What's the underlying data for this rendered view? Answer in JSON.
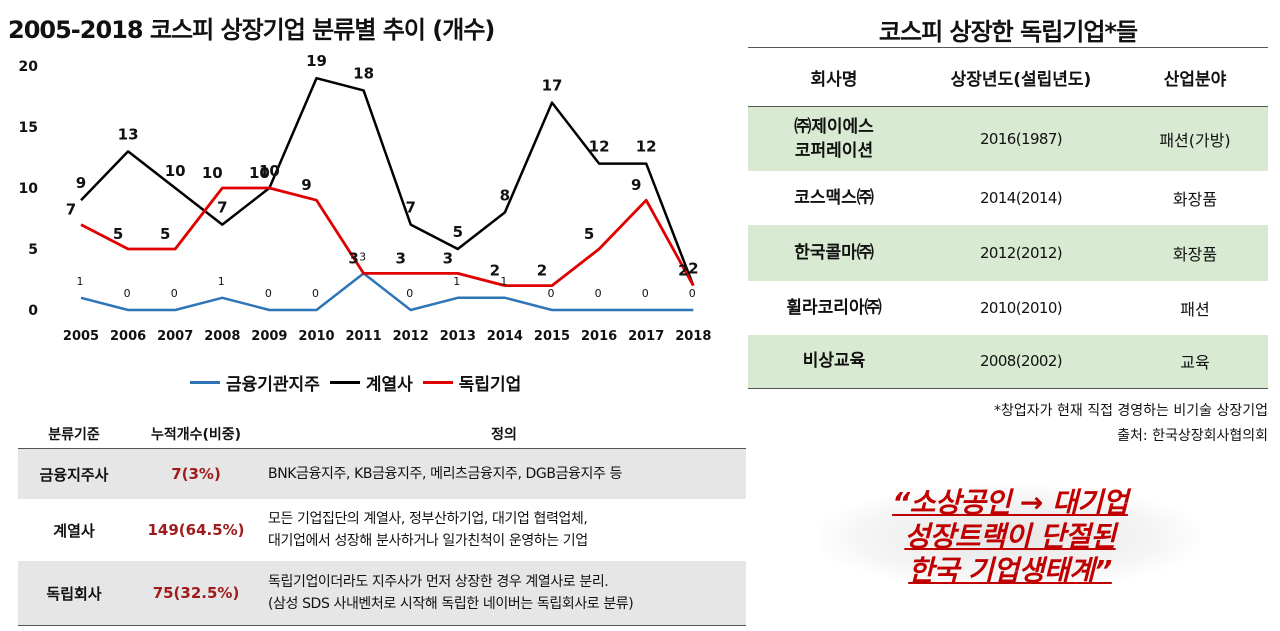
{
  "chart_data": {
    "type": "line",
    "title": "2005-2018 코스피 상장기업 분류별 추이 (개수)",
    "x": [
      "2005",
      "2006",
      "2007",
      "2008",
      "2009",
      "2010",
      "2011",
      "2012",
      "2013",
      "2014",
      "2015",
      "2016",
      "2017",
      "2018"
    ],
    "ylim": [
      0,
      20
    ],
    "yticks": [
      "0",
      "5",
      "10",
      "15",
      "20"
    ],
    "grid": false,
    "legend_position": "bottom",
    "series": [
      {
        "name": "금융기관지주",
        "color": "#2e75b6",
        "values": [
          1,
          0,
          0,
          1,
          0,
          0,
          3,
          0,
          1,
          1,
          0,
          0,
          0,
          0
        ]
      },
      {
        "name": "계열사",
        "color": "#000000",
        "values": [
          9,
          13,
          10,
          7,
          10,
          19,
          18,
          7,
          5,
          8,
          17,
          12,
          12,
          2
        ]
      },
      {
        "name": "독립기업",
        "color": "#e00000",
        "values": [
          7,
          5,
          5,
          10,
          10,
          9,
          3,
          3,
          3,
          2,
          2,
          5,
          9,
          2
        ]
      }
    ]
  },
  "class_table": {
    "headers": [
      "분류기준",
      "누적개수(비중)",
      "정의"
    ],
    "rows": [
      {
        "category": "금융지주사",
        "count": "7(3%)",
        "def1": "BNK금융지주, KB금융지주, 메리츠금융지주, DGB금융지주 등",
        "def2": ""
      },
      {
        "category": "계열사",
        "count": "149(64.5%)",
        "def1": "모든 기업집단의 계열사, 정부산하기업, 대기업 협력업체,",
        "def2": "대기업에서 성장해 분사하거나 일가친척이 운영하는 기업"
      },
      {
        "category": "독립회사",
        "count": "75(32.5%)",
        "def1": "독립기업이더라도 지주사가 먼저 상장한 경우 계열사로 분리.",
        "def2": "(삼성 SDS 사내벤처로 시작해 독립한 네이버는 독립회사로 분류)"
      }
    ]
  },
  "right": {
    "title": "코스피 상장한 독립기업*들",
    "headers": [
      "회사명",
      "상장년도(설립년도)",
      "산업분야"
    ],
    "firms": [
      {
        "name1": "㈜제이에스",
        "name2": "코퍼레이션",
        "year": "2016(1987)",
        "industry": "패션(가방)"
      },
      {
        "name1": "코스맥스㈜",
        "name2": "",
        "year": "2014(2014)",
        "industry": "화장품"
      },
      {
        "name1": "한국콜마㈜",
        "name2": "",
        "year": "2012(2012)",
        "industry": "화장품"
      },
      {
        "name1": "휠라코리아㈜",
        "name2": "",
        "year": "2010(2010)",
        "industry": "패션"
      },
      {
        "name1": "비상교육",
        "name2": "",
        "year": "2008(2002)",
        "industry": "교육"
      }
    ],
    "note": "*창업자가 현재 직접 경영하는 비기술 상장기업",
    "source": "출처: 한국상장회사협의회",
    "quote": [
      "“소상공인 → 대기업",
      "성장트랙이 단절된",
      "한국 기업생태계”"
    ]
  }
}
